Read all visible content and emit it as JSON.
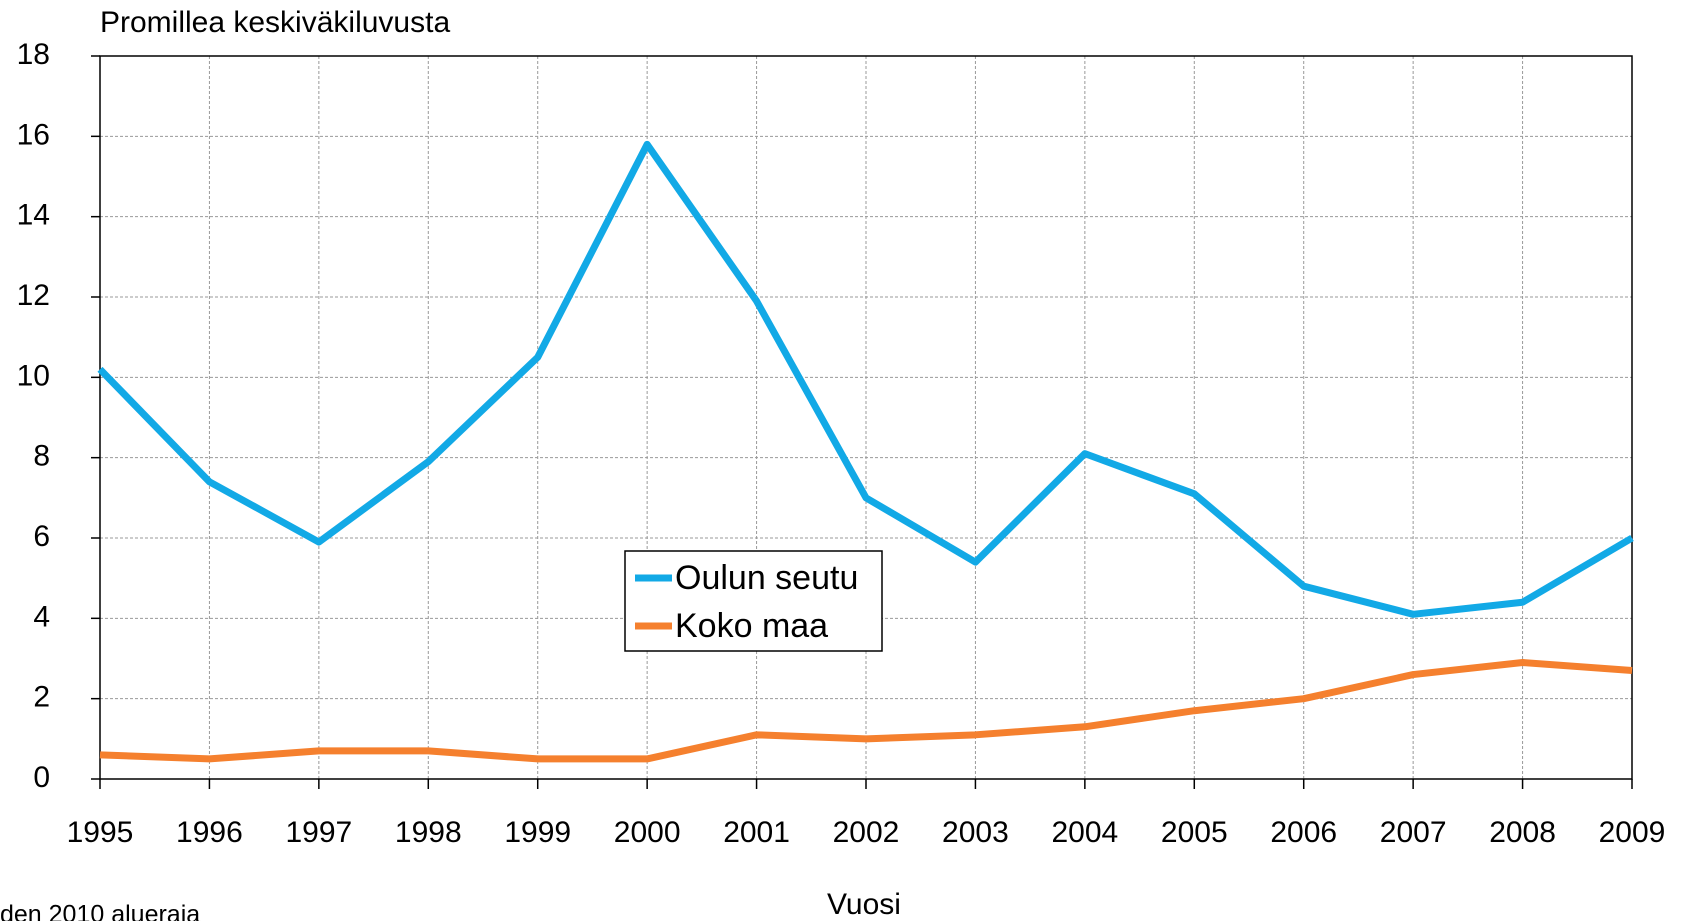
{
  "chart_data": {
    "type": "line",
    "title": "Promillea keskiväkiluvusta",
    "x_label": "Vuosi",
    "footnote": "den 2010 alueraja",
    "categories": [
      "1995",
      "1996",
      "1997",
      "1998",
      "1999",
      "2000",
      "2001",
      "2002",
      "2003",
      "2004",
      "2005",
      "2006",
      "2007",
      "2008",
      "2009"
    ],
    "series": [
      {
        "name": "Oulun seutu",
        "color": "#12a9e6",
        "values": [
          10.2,
          7.4,
          5.9,
          7.9,
          10.5,
          15.8,
          11.9,
          7.0,
          5.4,
          8.1,
          7.1,
          4.8,
          4.1,
          4.4,
          6.0
        ]
      },
      {
        "name": "Koko maa",
        "color": "#f5802e",
        "values": [
          0.6,
          0.5,
          0.7,
          0.7,
          0.5,
          0.5,
          1.1,
          1.0,
          1.1,
          1.3,
          1.7,
          2.0,
          2.6,
          2.9,
          2.7
        ]
      }
    ],
    "ylim": [
      0,
      18
    ],
    "yticks": [
      0,
      2,
      4,
      6,
      8,
      10,
      12,
      14,
      16,
      18
    ],
    "grid": true
  }
}
